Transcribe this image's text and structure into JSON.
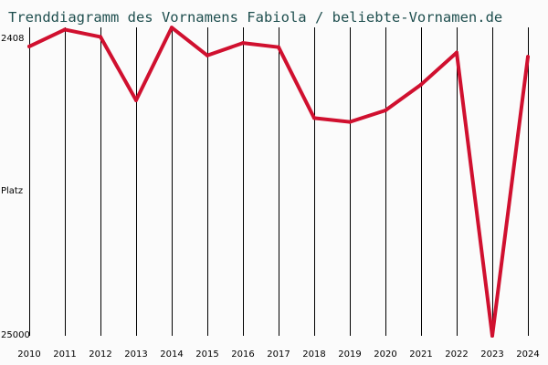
{
  "chart_data": {
    "type": "line",
    "title": "Trenddiagramm des Vornamens Fabiola / beliebte-Vornamen.de",
    "xlabel": "",
    "ylabel": "Platz",
    "y_inverted": true,
    "ylim": [
      2408,
      25000
    ],
    "y_tick_labels": [
      "2408",
      "Platz",
      "25000"
    ],
    "grid": "vertical",
    "x": [
      "2010",
      "2011",
      "2012",
      "2013",
      "2014",
      "2015",
      "2016",
      "2017",
      "2018",
      "2019",
      "2020",
      "2021",
      "2022",
      "2023",
      "2024"
    ],
    "series": [
      {
        "name": "",
        "color": "#d0102f",
        "values": [
          3805,
          2570,
          3105,
          7750,
          2420,
          4470,
          3550,
          3860,
          9050,
          9330,
          8490,
          6600,
          4250,
          25000,
          4560
        ]
      }
    ]
  }
}
